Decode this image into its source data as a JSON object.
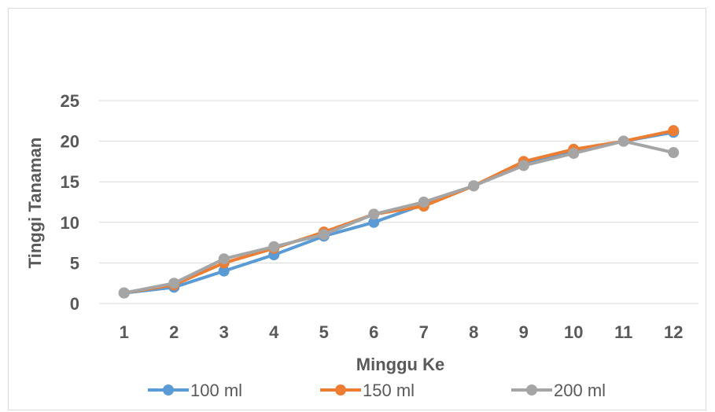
{
  "chart_data": {
    "type": "line",
    "title": "",
    "xlabel": "Minggu Ke",
    "ylabel": "Tinggi Tanaman",
    "categories": [
      "1",
      "2",
      "3",
      "4",
      "5",
      "6",
      "7",
      "8",
      "9",
      "10",
      "11",
      "12"
    ],
    "ylim": [
      0,
      25
    ],
    "yticks": [
      "0",
      "5",
      "10",
      "15",
      "20",
      "25"
    ],
    "grid": true,
    "legend_position": "bottom",
    "series": [
      {
        "name": "100 ml",
        "color": "#5b9bd5",
        "values": [
          1.3,
          2.0,
          4.0,
          6.0,
          8.3,
          10.0,
          12.2,
          14.5,
          17.2,
          18.7,
          20.0,
          21.1
        ]
      },
      {
        "name": "150 ml",
        "color": "#ed7d31",
        "values": [
          1.3,
          2.3,
          5.0,
          6.8,
          8.8,
          11.0,
          12.0,
          14.5,
          17.5,
          19.0,
          20.0,
          21.3
        ]
      },
      {
        "name": "200 ml",
        "color": "#a5a5a5",
        "values": [
          1.3,
          2.5,
          5.5,
          7.0,
          8.5,
          11.0,
          12.5,
          14.5,
          17.0,
          18.5,
          20.0,
          18.6
        ]
      }
    ]
  }
}
